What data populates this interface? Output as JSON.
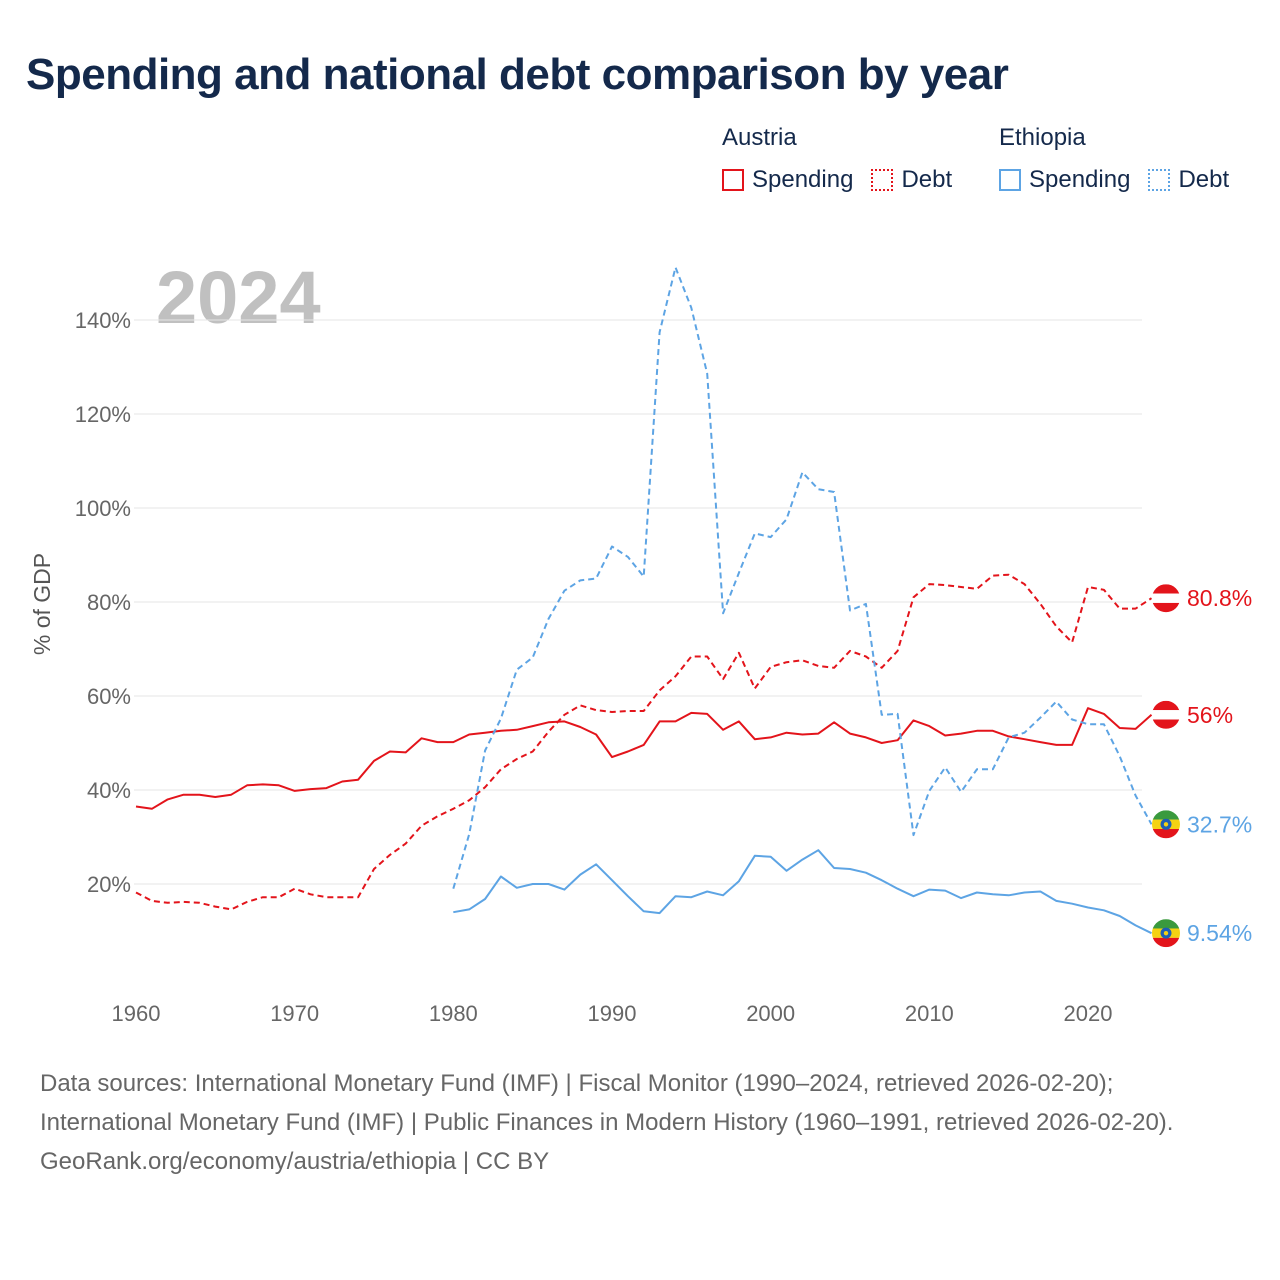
{
  "title": "Spending and national debt comparison by year",
  "legend": [
    {
      "country": "Austria",
      "color": "#e3141b",
      "items": [
        {
          "label": "Spending",
          "style": "solid"
        },
        {
          "label": "Debt",
          "style": "dotted"
        }
      ]
    },
    {
      "country": "Ethiopia",
      "color": "#5da4e4",
      "items": [
        {
          "label": "Spending",
          "style": "solid"
        },
        {
          "label": "Debt",
          "style": "dotted"
        }
      ]
    }
  ],
  "chart_data": {
    "type": "line",
    "year_label": "2024",
    "ylabel": "% of GDP",
    "xlim": [
      1960,
      2024
    ],
    "ylim": [
      0,
      150
    ],
    "x_ticks": [
      1960,
      1970,
      1980,
      1990,
      2000,
      2010,
      2020
    ],
    "y_ticks": [
      20,
      40,
      60,
      80,
      100,
      120,
      140
    ],
    "y_tick_labels": [
      "20%",
      "40%",
      "60%",
      "80%",
      "100%",
      "120%",
      "140%"
    ],
    "series": [
      {
        "name": "Austria Spending",
        "country": "Austria",
        "kind": "Spending",
        "color": "#e3141b",
        "dash": "solid",
        "end_label": "56%",
        "flag": "austria",
        "x_start": 1960,
        "values": [
          36.5,
          36,
          38,
          39,
          39,
          38.5,
          39,
          41,
          41.2,
          41,
          39.8,
          40.2,
          40.4,
          41.8,
          42.2,
          46.2,
          48.2,
          48,
          51,
          50.2,
          50.2,
          51.8,
          52.2,
          52.6,
          52.8,
          53.6,
          54.4,
          54.6,
          53.4,
          51.8,
          47,
          48.2,
          49.6,
          54.6,
          54.6,
          56.4,
          56.2,
          52.8,
          54.6,
          50.8,
          51.2,
          52.2,
          51.8,
          52,
          54.4,
          52,
          51.2,
          50,
          50.6,
          54.8,
          53.6,
          51.6,
          52,
          52.6,
          52.6,
          51.4,
          50.8,
          50.2,
          49.6,
          49.6,
          57.4,
          56.2,
          53.2,
          53,
          56
        ]
      },
      {
        "name": "Austria Debt",
        "country": "Austria",
        "kind": "Debt",
        "color": "#e3141b",
        "dash": "dashed",
        "end_label": "80.8%",
        "flag": "austria",
        "x_start": 1960,
        "values": [
          18.2,
          16.4,
          16,
          16.2,
          16,
          15.2,
          14.6,
          16.2,
          17.2,
          17.2,
          19,
          17.8,
          17.2,
          17.2,
          17.2,
          23.2,
          26.2,
          28.6,
          32.4,
          34.4,
          36,
          37.8,
          40.6,
          44.4,
          46.6,
          48.2,
          52.4,
          56,
          58,
          57,
          56.6,
          56.8,
          56.8,
          61.2,
          64.2,
          68.4,
          68.4,
          63.6,
          69.2,
          61.6,
          66.2,
          67.2,
          67.6,
          66.4,
          66,
          69.6,
          68.4,
          66,
          69.6,
          81,
          83.8,
          83.6,
          83.2,
          82.8,
          85.6,
          85.8,
          83.8,
          79.6,
          74.8,
          71.4,
          83.2,
          82.6,
          78.6,
          78.6,
          80.8
        ]
      },
      {
        "name": "Ethiopia Spending",
        "country": "Ethiopia",
        "kind": "Spending",
        "color": "#5da4e4",
        "dash": "solid",
        "end_label": "9.54%",
        "flag": "ethiopia",
        "x_start": 1980,
        "values": [
          14,
          14.6,
          16.8,
          21.6,
          19.2,
          20,
          20,
          18.8,
          22,
          24.2,
          20.8,
          17.4,
          14.2,
          13.8,
          17.4,
          17.2,
          18.4,
          17.6,
          20.6,
          26,
          25.8,
          22.8,
          25.2,
          27.2,
          23.4,
          23.2,
          22.4,
          20.8,
          19,
          17.4,
          18.8,
          18.6,
          17,
          18.2,
          17.8,
          17.6,
          18.2,
          18.4,
          16.4,
          15.8,
          15,
          14.4,
          13.2,
          11.2,
          9.54
        ]
      },
      {
        "name": "Ethiopia Debt",
        "country": "Ethiopia",
        "kind": "Debt",
        "color": "#5da4e4",
        "dash": "dashed",
        "end_label": "32.7%",
        "flag": "ethiopia",
        "x_start": 1980,
        "values": [
          19,
          30.6,
          48.4,
          55.2,
          65.6,
          68.2,
          76.4,
          82.4,
          84.6,
          85,
          91.8,
          89.6,
          85.4,
          137.4,
          151.2,
          142.6,
          128.6,
          77.6,
          86.2,
          94.6,
          93.8,
          97.6,
          107.6,
          104,
          103.4,
          78.2,
          79.6,
          56,
          56.2,
          30.4,
          39.8,
          44.8,
          39.6,
          44.4,
          44.4,
          51.2,
          52.2,
          55.4,
          58.8,
          55,
          54,
          54,
          47.2,
          38.8,
          32.7
        ]
      }
    ]
  },
  "footer": {
    "sources": "Data sources: International Monetary Fund (IMF) | Fiscal Monitor (1990–2024, retrieved 2026-02-20); International Monetary Fund (IMF) | Public Finances in Modern History (1960–1991, retrieved 2026-02-20).",
    "credit": "GeoRank.org/economy/austria/ethiopia | CC BY"
  }
}
